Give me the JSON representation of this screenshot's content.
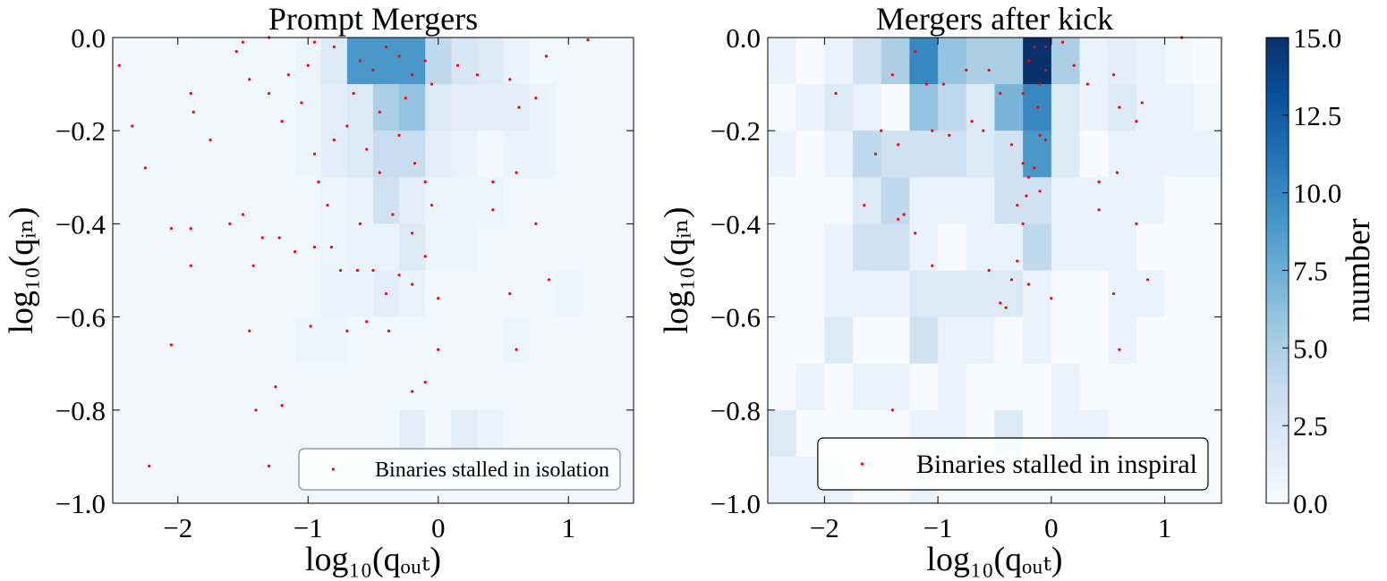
{
  "chart_data": [
    {
      "type": "heatmap",
      "title": "Prompt Mergers",
      "xlabel": "log₁₀(qₒᵤₜ)",
      "ylabel": "log₁₀(qᵢₙ)",
      "xlim": [
        -2.5,
        1.5
      ],
      "ylim": [
        -1,
        0
      ],
      "xticks": [
        {
          "value": -2,
          "label": "−2"
        },
        {
          "value": -1,
          "label": "−1"
        },
        0,
        1
      ],
      "yticks": [
        {
          "value": 0,
          "label": "0.0"
        },
        {
          "value": -0.2,
          "label": "−0.2"
        },
        {
          "value": -0.4,
          "label": "−0.4"
        },
        {
          "value": -0.6,
          "label": "−0.6"
        },
        {
          "value": -0.8,
          "label": "−0.8"
        },
        {
          "value": -1,
          "label": "−1.0"
        }
      ],
      "x_edges": [
        -2.5,
        -2.3,
        -2.1,
        -1.9,
        -1.7,
        -1.5,
        -1.3,
        -1.1,
        -0.9,
        -0.7,
        -0.5,
        -0.3,
        -0.1,
        0.1,
        0.3,
        0.5,
        0.7,
        0.9,
        1.1,
        1.3,
        1.5
      ],
      "y_edges": [
        0,
        -0.1,
        -0.2,
        -0.3,
        -0.4,
        -0.5,
        -0.6,
        -0.7,
        -0.8,
        -0.9,
        -1
      ],
      "z": [
        [
          0.3,
          0.3,
          0.3,
          0.5,
          0.5,
          0.5,
          0.5,
          0.8,
          2,
          9,
          9,
          9,
          4,
          2.5,
          2,
          1,
          0.5,
          0.5,
          0.3,
          0.3
        ],
        [
          0.3,
          0.3,
          0.3,
          0.5,
          0.5,
          0.5,
          0.5,
          0.8,
          1.5,
          2,
          5,
          6,
          2,
          1.5,
          1.5,
          1.5,
          1,
          0.5,
          0.5,
          0.3
        ],
        [
          0.3,
          0.3,
          0.3,
          0.5,
          0.5,
          0.5,
          0.5,
          0.8,
          1.5,
          2,
          3.5,
          3.5,
          1.5,
          1,
          0.3,
          1,
          1,
          0.5,
          0.5,
          0.3
        ],
        [
          0.3,
          0.3,
          0.3,
          0.5,
          0.5,
          0.5,
          0.5,
          0.5,
          0.8,
          1,
          3,
          1.5,
          0.8,
          0.8,
          0.8,
          0.5,
          0.5,
          0.3,
          0.3,
          0.3
        ],
        [
          0.3,
          0.3,
          0.3,
          0.3,
          0.5,
          0.5,
          0.5,
          0.5,
          0.8,
          1,
          1,
          2,
          0.8,
          0.8,
          0.5,
          0.5,
          0.3,
          0.3,
          0.3,
          0.3
        ],
        [
          0.3,
          0.3,
          0.3,
          0.3,
          0.3,
          0.5,
          0.5,
          0.5,
          1,
          1,
          1.5,
          1,
          0.5,
          0.5,
          0.5,
          0.5,
          0.5,
          0.8,
          0.3,
          0.3
        ],
        [
          0.3,
          0.3,
          0.3,
          0.3,
          0.3,
          0.3,
          0.5,
          0.8,
          0.8,
          0.5,
          0.5,
          0.5,
          0.5,
          0.5,
          0.5,
          0.8,
          0.3,
          0.3,
          0.3,
          0.3
        ],
        [
          0.3,
          0.3,
          0.3,
          0.3,
          0.3,
          0.3,
          0.3,
          0.5,
          0.5,
          0.5,
          0.5,
          0.5,
          0.5,
          0.5,
          0.5,
          0.3,
          0.3,
          0.3,
          0.3,
          0.3
        ],
        [
          0.3,
          0.3,
          0.3,
          0.3,
          0.3,
          0.3,
          0.3,
          0.5,
          0.5,
          0.5,
          0.5,
          1.5,
          0.5,
          1.5,
          1,
          0.3,
          0.3,
          0.3,
          0.3,
          0.3
        ],
        [
          0.3,
          0.3,
          0.3,
          0.3,
          0.3,
          0.3,
          0.3,
          0.5,
          0.5,
          0.5,
          0.5,
          0.5,
          0.5,
          0.3,
          0.3,
          0.3,
          0.3,
          0.3,
          0.3,
          0.3
        ]
      ],
      "scatter": {
        "name": "Binaries stalled in isolation",
        "color": "#ff0000",
        "x": [
          1.15,
          0.85,
          0.6,
          0.55,
          0.75,
          0.6,
          0.42,
          0.42,
          0.75,
          0.62,
          0.83,
          0.55,
          0.3,
          0.15,
          0.0,
          0.0,
          -0.1,
          -0.2,
          -0.38,
          -0.55,
          -0.7,
          -0.98,
          -1.25,
          -1.2,
          -1.4,
          -1.45,
          -2.05,
          -2.22,
          -1.3,
          -1.9,
          -1.42,
          -1.35,
          -1.22,
          -1.1,
          -0.95,
          -0.82,
          -0.75,
          -0.62,
          -0.5,
          -0.4,
          -0.3,
          -0.2,
          -0.1,
          -0.2,
          -0.35,
          -0.6,
          -0.85,
          -1.5,
          -1.6,
          -2.05,
          -1.9,
          -1.75,
          -2.25,
          -2.35,
          -2.45,
          -1.9,
          -1.88,
          -1.55,
          -1.45,
          -1.3,
          -1.2,
          -1.05,
          -0.95,
          -0.92,
          -0.8,
          -0.7,
          -0.55,
          -0.45,
          -0.3,
          -0.18,
          -0.1,
          -0.05,
          -1.0,
          -0.95,
          -0.8,
          -0.6,
          -0.5,
          -0.4,
          -0.3,
          -0.2,
          -0.1,
          -0.05,
          -1.5,
          -1.3,
          -1.15,
          -0.65,
          -0.45,
          -0.25
        ],
        "y": [
          -0.005,
          -0.52,
          -0.67,
          -0.55,
          -0.4,
          -0.29,
          -0.31,
          -0.37,
          -0.13,
          -0.15,
          -0.04,
          -0.09,
          -0.08,
          -0.06,
          -0.56,
          -0.67,
          -0.74,
          -0.76,
          -0.63,
          -0.61,
          -0.63,
          -0.62,
          -0.75,
          -0.79,
          -0.8,
          -0.63,
          -0.66,
          -0.92,
          -0.92,
          -0.49,
          -0.49,
          -0.43,
          -0.43,
          -0.46,
          -0.45,
          -0.45,
          -0.5,
          -0.5,
          -0.5,
          -0.55,
          -0.51,
          -0.53,
          -0.47,
          -0.42,
          -0.38,
          -0.4,
          -0.36,
          -0.38,
          -0.4,
          -0.41,
          -0.41,
          -0.22,
          -0.28,
          -0.19,
          -0.06,
          -0.12,
          -0.16,
          -0.03,
          -0.09,
          -0.12,
          -0.18,
          -0.14,
          -0.25,
          -0.31,
          -0.22,
          -0.19,
          -0.24,
          -0.29,
          -0.21,
          -0.27,
          -0.31,
          -0.36,
          -0.06,
          -0.01,
          -0.02,
          -0.05,
          -0.07,
          -0.02,
          -0.04,
          -0.08,
          -0.05,
          -0.1,
          -0.01,
          0,
          -0.08,
          -0.12,
          -0.16,
          -0.13
        ]
      },
      "legend": "lower right",
      "legend_edge": "#888888"
    },
    {
      "type": "heatmap",
      "title": "Mergers after kick",
      "xlabel": "log₁₀(qₒᵤₜ)",
      "ylabel": "log₁₀(qᵢₙ)",
      "xlim": [
        -2.5,
        1.5
      ],
      "ylim": [
        -1,
        0
      ],
      "xticks": [
        {
          "value": -2,
          "label": "−2"
        },
        {
          "value": -1,
          "label": "−1"
        },
        0,
        1
      ],
      "yticks": [
        {
          "value": 0,
          "label": "0.0"
        },
        {
          "value": -0.2,
          "label": "−0.2"
        },
        {
          "value": -0.4,
          "label": "−0.4"
        },
        {
          "value": -0.6,
          "label": "−0.6"
        },
        {
          "value": -0.8,
          "label": "−0.8"
        },
        {
          "value": -1,
          "label": "−1.0"
        }
      ],
      "x_edges": [
        -2.5,
        -2.25,
        -2,
        -1.75,
        -1.5,
        -1.25,
        -1,
        -0.75,
        -0.5,
        -0.25,
        0,
        0.25,
        0.5,
        0.75,
        1,
        1.25,
        1.5
      ],
      "y_edges": [
        0,
        -0.1,
        -0.2,
        -0.3,
        -0.4,
        -0.5,
        -0.6,
        -0.7,
        -0.8,
        -0.9,
        -1
      ],
      "z": [
        [
          1,
          0,
          1,
          3,
          5,
          10,
          6,
          5,
          5,
          15,
          5,
          1,
          1.5,
          1,
          0.5,
          0
        ],
        [
          0,
          1,
          2,
          1,
          0,
          6,
          4,
          2,
          7,
          10,
          2,
          1,
          2,
          1,
          1,
          0.5
        ],
        [
          1,
          0,
          1,
          4,
          3,
          3,
          3,
          2,
          3,
          9,
          2,
          0,
          1,
          1,
          1,
          1
        ],
        [
          0,
          0,
          0,
          2,
          4,
          1,
          1,
          1,
          3,
          3,
          1,
          1,
          1,
          1,
          0,
          0
        ],
        [
          0,
          0,
          1,
          3,
          3,
          1,
          0,
          1,
          1,
          4,
          1,
          1,
          1,
          0,
          0,
          0
        ],
        [
          0,
          0,
          1,
          1,
          1,
          2,
          2,
          2,
          2,
          1,
          0,
          0,
          1,
          1,
          0,
          0
        ],
        [
          0,
          0,
          2,
          0,
          0,
          3,
          1,
          1,
          0,
          1,
          0,
          0,
          1,
          0,
          0,
          0
        ],
        [
          0,
          1,
          0,
          1,
          1,
          0,
          1,
          0,
          0,
          0,
          1,
          0,
          0,
          0,
          0,
          0
        ],
        [
          2,
          0,
          0,
          0,
          0,
          1,
          1,
          0,
          2,
          0,
          1,
          1,
          0,
          0,
          0,
          0
        ],
        [
          1,
          1,
          1,
          0,
          0,
          1,
          0,
          0,
          0,
          0,
          0,
          0,
          0,
          0,
          0,
          0
        ]
      ],
      "scatter": {
        "name": "Binaries stalled in inspiral",
        "color": "#ff0000",
        "x": [
          1.15,
          0.85,
          0.6,
          0.55,
          0.75,
          0.58,
          0.42,
          0.42,
          0.75,
          0.6,
          0.8,
          0.55,
          0.32,
          0.2,
          0.0,
          -0.2,
          -0.35,
          -0.45,
          -0.55,
          -0.4,
          -0.3,
          -1.05,
          -1.4,
          -1.65,
          -1.5,
          -1.55,
          -1.35,
          -1.35,
          -1.3,
          -1.2,
          -1.9,
          -1.2,
          -1.1,
          -0.95,
          -1.05,
          -0.9,
          -0.75,
          -0.55,
          -0.6,
          -0.35,
          -0.25,
          -0.15,
          -0.1,
          -0.05,
          -0.2,
          -0.22,
          -0.3,
          -0.25,
          -0.1,
          -0.05,
          -0.1,
          -0.15,
          -0.2,
          -0.25,
          -0.12,
          -0.05,
          0.1,
          -1.4,
          -0.7,
          -0.45
        ],
        "y": [
          0,
          -0.52,
          -0.67,
          -0.55,
          -0.4,
          -0.29,
          -0.31,
          -0.37,
          -0.18,
          -0.15,
          -0.14,
          -0.08,
          -0.1,
          -0.06,
          -0.56,
          -0.53,
          -0.52,
          -0.57,
          -0.5,
          -0.58,
          -0.48,
          -0.49,
          -0.8,
          -0.36,
          -0.2,
          -0.25,
          -0.23,
          -0.39,
          -0.38,
          -0.42,
          -0.12,
          -0.03,
          -0.1,
          -0.1,
          -0.2,
          -0.21,
          -0.07,
          -0.07,
          -0.2,
          -0.23,
          -0.27,
          -0.28,
          -0.21,
          -0.22,
          -0.3,
          -0.34,
          -0.36,
          -0.4,
          -0.33,
          -0.07,
          -0.1,
          -0.02,
          -0.05,
          -0.12,
          -0.15,
          -0.02,
          -0.01,
          -0.08,
          -0.18,
          -0.12
        ]
      },
      "legend": "lower right",
      "legend_edge": "#000000"
    },
    {
      "type": "colorbar",
      "label": "number",
      "clim": [
        0,
        15
      ],
      "ticks": [
        {
          "value": 0,
          "label": "0.0"
        },
        {
          "value": 2.5,
          "label": "2.5"
        },
        {
          "value": 5,
          "label": "5.0"
        },
        {
          "value": 7.5,
          "label": "7.5"
        },
        {
          "value": 10,
          "label": "10.0"
        },
        {
          "value": 12.5,
          "label": "12.5"
        },
        {
          "value": 15,
          "label": "15.0"
        }
      ],
      "colorscale": [
        "#f7fbff",
        "#deebf7",
        "#c6dbef",
        "#9ecae1",
        "#6baed6",
        "#4292c6",
        "#2171b5",
        "#08519c",
        "#08306b"
      ]
    }
  ]
}
